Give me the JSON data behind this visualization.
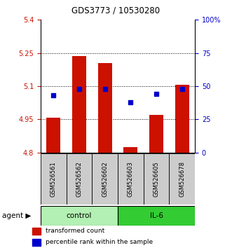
{
  "title": "GDS3773 / 10530280",
  "samples": [
    "GSM526561",
    "GSM526562",
    "GSM526602",
    "GSM526603",
    "GSM526605",
    "GSM526678"
  ],
  "red_values": [
    4.957,
    5.235,
    5.205,
    4.825,
    4.97,
    5.105
  ],
  "blue_values_pct": [
    43,
    48,
    48,
    38,
    44,
    48
  ],
  "y_min": 4.8,
  "y_max": 5.4,
  "y_ticks": [
    4.8,
    4.95,
    5.1,
    5.25,
    5.4
  ],
  "y_right_ticks": [
    0,
    25,
    50,
    75,
    100
  ],
  "y_right_labels": [
    "0",
    "25",
    "50",
    "75",
    "100%"
  ],
  "control_color": "#b3f0b3",
  "il6_color": "#33cc33",
  "bar_color": "#cc1100",
  "dot_color": "#0000cc",
  "axis_label_color_left": "#cc1100",
  "axis_label_color_right": "#0000cc",
  "legend_red_label": "transformed count",
  "legend_blue_label": "percentile rank within the sample",
  "agent_label": "agent",
  "control_label": "control",
  "il6_label": "IL-6",
  "bar_width": 0.55,
  "sample_bg_color": "#cccccc",
  "title_fontsize": 8.5,
  "tick_fontsize": 7,
  "label_fontsize": 7,
  "legend_fontsize": 6.5
}
